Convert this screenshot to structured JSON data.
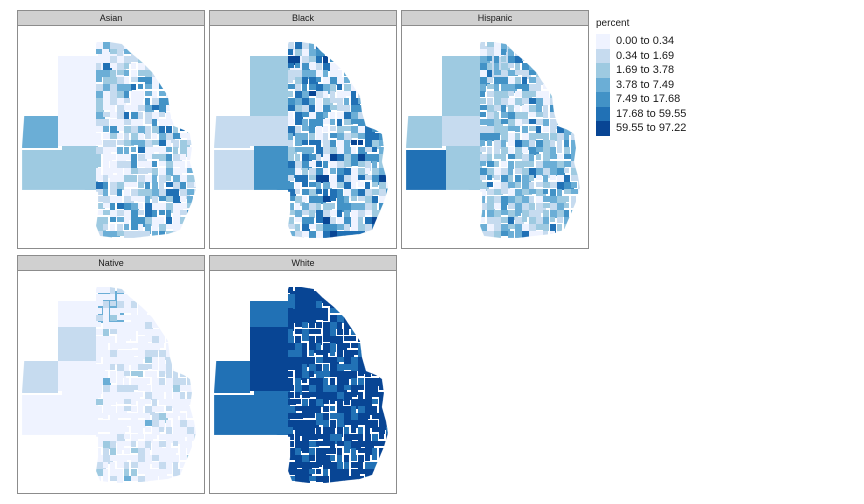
{
  "facets": [
    {
      "name": "Asian",
      "palette_bias": [
        0.38,
        0.22,
        0.15,
        0.12,
        0.08,
        0.05,
        0.0
      ]
    },
    {
      "name": "Black",
      "palette_bias": [
        0.15,
        0.18,
        0.14,
        0.16,
        0.17,
        0.15,
        0.05
      ]
    },
    {
      "name": "Hispanic",
      "palette_bias": [
        0.12,
        0.24,
        0.25,
        0.22,
        0.13,
        0.04,
        0.0
      ]
    },
    {
      "name": "Native",
      "palette_bias": [
        0.72,
        0.22,
        0.05,
        0.01,
        0.0,
        0.0,
        0.0
      ]
    },
    {
      "name": "White",
      "palette_bias": [
        0.0,
        0.0,
        0.0,
        0.0,
        0.0,
        0.25,
        0.75
      ]
    }
  ],
  "legend": {
    "title": "percent",
    "items": [
      {
        "label": "0.00 to 0.34",
        "color": "#eff3ff"
      },
      {
        "label": "0.34 to 1.69",
        "color": "#c6dbef"
      },
      {
        "label": "1.69 to 3.78",
        "color": "#9ecae1"
      },
      {
        "label": "3.78 to 7.49",
        "color": "#6baed6"
      },
      {
        "label": "7.49 to 17.68",
        "color": "#4292c6"
      },
      {
        "label": "17.68 to 59.55",
        "color": "#2171b5"
      },
      {
        "label": "59.55 to 97.22",
        "color": "#084594"
      }
    ]
  }
}
